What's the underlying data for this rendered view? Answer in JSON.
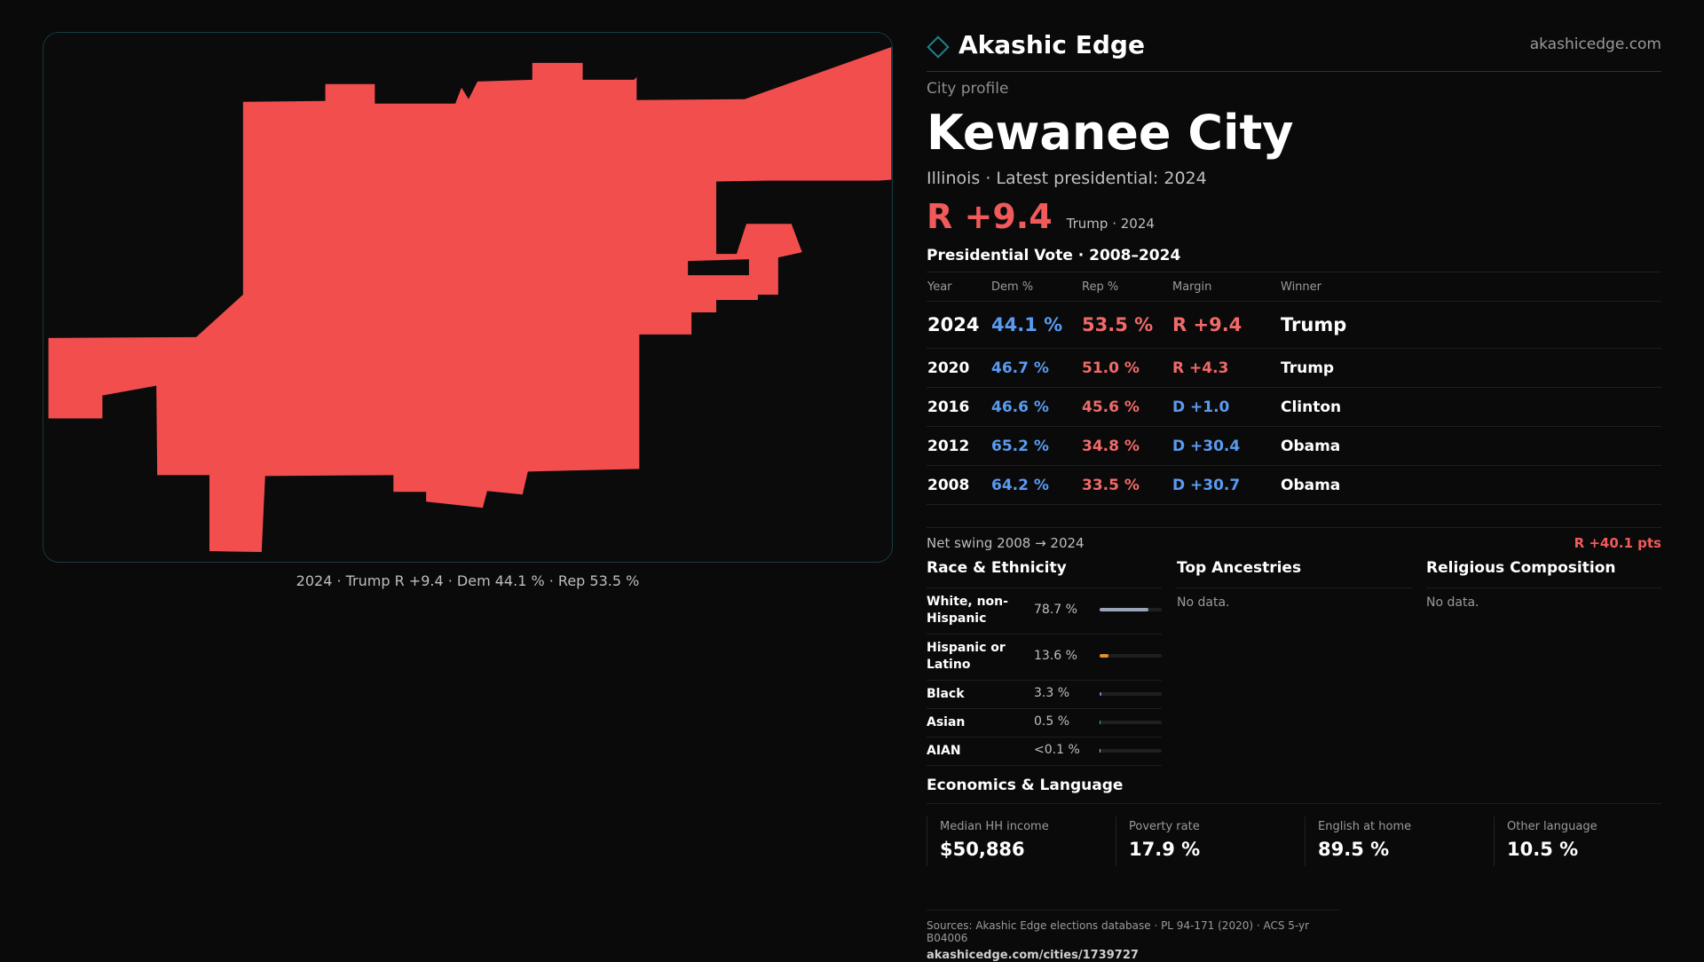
{
  "map": {
    "caption": "2024 · Trump R +9.4 · Dem 44.1 % · Rep 53.5 %",
    "fill_color": "#f24e4e"
  },
  "brand": {
    "name": "Akashic Edge",
    "url": "akashicedge.com",
    "icon": "diamond-icon"
  },
  "profile": {
    "eyebrow": "City profile",
    "city": "Kewanee City",
    "subline": "Illinois · Latest presidential: 2024",
    "margin": "R +9.4",
    "margin_detail": "Trump · 2024"
  },
  "votes": {
    "title": "Presidential Vote · 2008–2024",
    "headers": [
      "Year",
      "Dem %",
      "Rep %",
      "Margin",
      "Winner"
    ],
    "rows": [
      {
        "year": "2024",
        "dem": "44.1 %",
        "rep": "53.5 %",
        "margin": "R +9.4",
        "party": "r",
        "winner": "Trump"
      },
      {
        "year": "2020",
        "dem": "46.7 %",
        "rep": "51.0 %",
        "margin": "R +4.3",
        "party": "r",
        "winner": "Trump"
      },
      {
        "year": "2016",
        "dem": "46.6 %",
        "rep": "45.6 %",
        "margin": "D +1.0",
        "party": "d",
        "winner": "Clinton"
      },
      {
        "year": "2012",
        "dem": "65.2 %",
        "rep": "34.8 %",
        "margin": "D +30.4",
        "party": "d",
        "winner": "Obama"
      },
      {
        "year": "2008",
        "dem": "64.2 %",
        "rep": "33.5 %",
        "margin": "D +30.7",
        "party": "d",
        "winner": "Obama"
      }
    ],
    "swing_label": "Net swing 2008 → 2024",
    "swing_value": "R +40.1 pts"
  },
  "race": {
    "title": "Race & Ethnicity",
    "rows": [
      {
        "label": "White, non-Hispanic",
        "value": "78.7 %",
        "pct": 78.7,
        "color": "#9aa4b8"
      },
      {
        "label": "Hispanic or Latino",
        "value": "13.6 %",
        "pct": 13.6,
        "color": "#e8902a"
      },
      {
        "label": "Black",
        "value": "3.3 %",
        "pct": 3.3,
        "color": "#8a7ae0"
      },
      {
        "label": "Asian",
        "value": "0.5 %",
        "pct": 0.5,
        "color": "#4fb3a8"
      },
      {
        "label": "AIAN",
        "value": "<0.1 %",
        "pct": 0.05,
        "color": "#c0c0c0"
      }
    ]
  },
  "ancestry": {
    "title": "Top Ancestries",
    "empty": "No data."
  },
  "religion": {
    "title": "Religious Composition",
    "empty": "No data."
  },
  "economics": {
    "title": "Economics & Language",
    "items": [
      {
        "label": "Median HH income",
        "value": "$50,886"
      },
      {
        "label": "Poverty rate",
        "value": "17.9 %"
      },
      {
        "label": "English at home",
        "value": "89.5 %"
      },
      {
        "label": "Other language",
        "value": "10.5 %"
      }
    ]
  },
  "sources": {
    "line1": "Sources: Akashic Edge elections database · PL 94-171 (2020) · ACS 5-yr B04006",
    "line2": "akashicedge.com/cities/1739727"
  }
}
